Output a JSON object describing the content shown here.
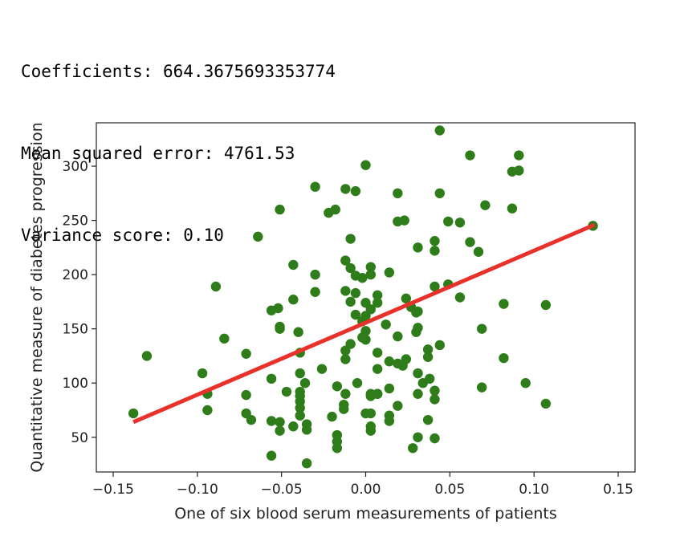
{
  "output": {
    "coefficients": "Coefficients: 664.3675693353774",
    "mse": "Mean squared error: 4761.53",
    "variance": "Variance score: 0.10"
  },
  "chart_data": {
    "type": "scatter",
    "xlabel": "One of six blood serum measurements of patients",
    "ylabel": "Quantitative measure of diabetes progression",
    "xlim": [
      -0.16,
      0.16
    ],
    "ylim": [
      18,
      340
    ],
    "xticks": [
      -0.15,
      -0.1,
      -0.05,
      0.0,
      0.05,
      0.1,
      0.15
    ],
    "xtick_labels": [
      "−0.15",
      "−0.10",
      "−0.05",
      "0.00",
      "0.05",
      "0.10",
      "0.15"
    ],
    "yticks": [
      50,
      100,
      150,
      200,
      250,
      300
    ],
    "ytick_labels": [
      "50",
      "100",
      "150",
      "200",
      "250",
      "300"
    ],
    "grid": false,
    "scatter_color": "#2e7d1a",
    "line_color": "#e8312a",
    "points": [
      [
        -0.138,
        72
      ],
      [
        -0.13,
        125
      ],
      [
        -0.097,
        109
      ],
      [
        -0.094,
        90
      ],
      [
        -0.094,
        75
      ],
      [
        -0.089,
        189
      ],
      [
        -0.084,
        141
      ],
      [
        -0.071,
        127
      ],
      [
        -0.071,
        89
      ],
      [
        -0.071,
        72
      ],
      [
        -0.068,
        66
      ],
      [
        -0.064,
        235
      ],
      [
        -0.056,
        167
      ],
      [
        -0.056,
        104
      ],
      [
        -0.056,
        65
      ],
      [
        -0.056,
        33
      ],
      [
        -0.052,
        169
      ],
      [
        -0.051,
        260
      ],
      [
        -0.051,
        152
      ],
      [
        -0.051,
        150
      ],
      [
        -0.051,
        64
      ],
      [
        -0.051,
        56
      ],
      [
        -0.047,
        92
      ],
      [
        -0.043,
        209
      ],
      [
        -0.043,
        177
      ],
      [
        -0.043,
        60
      ],
      [
        -0.04,
        147
      ],
      [
        -0.039,
        128
      ],
      [
        -0.039,
        109
      ],
      [
        -0.039,
        92
      ],
      [
        -0.039,
        88
      ],
      [
        -0.039,
        83
      ],
      [
        -0.039,
        77
      ],
      [
        -0.039,
        70
      ],
      [
        -0.036,
        100
      ],
      [
        -0.035,
        62
      ],
      [
        -0.035,
        57
      ],
      [
        -0.035,
        26
      ],
      [
        -0.03,
        281
      ],
      [
        -0.03,
        200
      ],
      [
        -0.03,
        184
      ],
      [
        -0.026,
        113
      ],
      [
        -0.022,
        257
      ],
      [
        -0.02,
        69
      ],
      [
        -0.018,
        260
      ],
      [
        -0.017,
        97
      ],
      [
        -0.017,
        52
      ],
      [
        -0.017,
        46
      ],
      [
        -0.017,
        40
      ],
      [
        -0.013,
        80
      ],
      [
        -0.013,
        76
      ],
      [
        -0.012,
        279
      ],
      [
        -0.012,
        213
      ],
      [
        -0.012,
        185
      ],
      [
        -0.012,
        130
      ],
      [
        -0.012,
        122
      ],
      [
        -0.012,
        90
      ],
      [
        -0.009,
        233
      ],
      [
        -0.009,
        206
      ],
      [
        -0.009,
        175
      ],
      [
        -0.009,
        136
      ],
      [
        -0.006,
        277
      ],
      [
        -0.006,
        199
      ],
      [
        -0.006,
        183
      ],
      [
        -0.006,
        163
      ],
      [
        -0.005,
        100
      ],
      [
        -0.002,
        197
      ],
      [
        -0.002,
        157
      ],
      [
        -0.002,
        142
      ],
      [
        0.0,
        301
      ],
      [
        0.0,
        174
      ],
      [
        0.0,
        162
      ],
      [
        0.0,
        148
      ],
      [
        0.0,
        140
      ],
      [
        0.0,
        72
      ],
      [
        0.003,
        207
      ],
      [
        0.003,
        200
      ],
      [
        0.003,
        168
      ],
      [
        0.003,
        88
      ],
      [
        0.003,
        90
      ],
      [
        0.003,
        72
      ],
      [
        0.003,
        60
      ],
      [
        0.003,
        56
      ],
      [
        0.007,
        181
      ],
      [
        0.007,
        174
      ],
      [
        0.007,
        128
      ],
      [
        0.007,
        113
      ],
      [
        0.007,
        90
      ],
      [
        0.007,
        90
      ],
      [
        0.012,
        154
      ],
      [
        0.014,
        202
      ],
      [
        0.014,
        120
      ],
      [
        0.014,
        95
      ],
      [
        0.014,
        70
      ],
      [
        0.014,
        65
      ],
      [
        0.019,
        275
      ],
      [
        0.019,
        249
      ],
      [
        0.019,
        143
      ],
      [
        0.019,
        118
      ],
      [
        0.019,
        79
      ],
      [
        0.022,
        116
      ],
      [
        0.023,
        250
      ],
      [
        0.024,
        122
      ],
      [
        0.024,
        178
      ],
      [
        0.027,
        170
      ],
      [
        0.028,
        40
      ],
      [
        0.03,
        165
      ],
      [
        0.03,
        147
      ],
      [
        0.031,
        225
      ],
      [
        0.031,
        166
      ],
      [
        0.031,
        151
      ],
      [
        0.031,
        109
      ],
      [
        0.031,
        90
      ],
      [
        0.031,
        50
      ],
      [
        0.034,
        100
      ],
      [
        0.037,
        131
      ],
      [
        0.037,
        124
      ],
      [
        0.037,
        66
      ],
      [
        0.038,
        104
      ],
      [
        0.041,
        231
      ],
      [
        0.041,
        222
      ],
      [
        0.041,
        189
      ],
      [
        0.041,
        93
      ],
      [
        0.041,
        85
      ],
      [
        0.041,
        49
      ],
      [
        0.044,
        333
      ],
      [
        0.044,
        275
      ],
      [
        0.044,
        135
      ],
      [
        0.049,
        249
      ],
      [
        0.049,
        191
      ],
      [
        0.056,
        248
      ],
      [
        0.056,
        179
      ],
      [
        0.062,
        310
      ],
      [
        0.062,
        230
      ],
      [
        0.071,
        264
      ],
      [
        0.067,
        221
      ],
      [
        0.069,
        150
      ],
      [
        0.069,
        96
      ],
      [
        0.082,
        173
      ],
      [
        0.082,
        123
      ],
      [
        0.087,
        261
      ],
      [
        0.087,
        295
      ],
      [
        0.091,
        296
      ],
      [
        0.091,
        310
      ],
      [
        0.095,
        100
      ],
      [
        0.107,
        172
      ],
      [
        0.107,
        81
      ],
      [
        0.135,
        245
      ]
    ],
    "regression_line": {
      "x": [
        -0.138,
        0.136
      ],
      "y": [
        64,
        246
      ]
    }
  }
}
